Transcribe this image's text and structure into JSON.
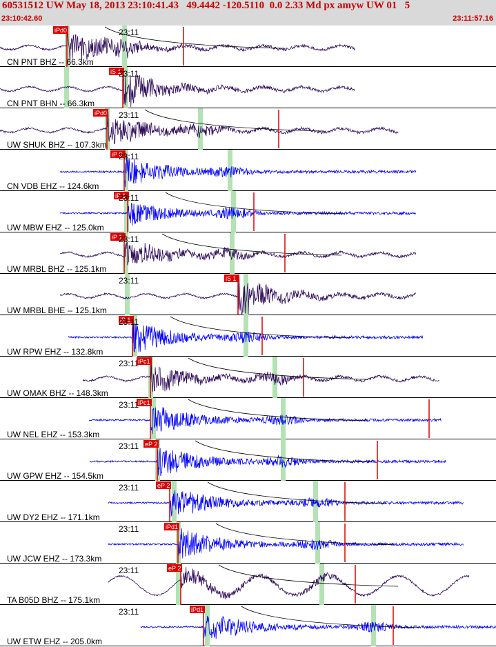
{
  "header": {
    "title": "60531512 UW May 18, 2013 23:10:41.43   49.4442 -120.5110  0.0 2.33 Md px amyw UW 01   5",
    "start_time": "23:10:42.60",
    "end_time": "23:11:57.16"
  },
  "chart_data": {
    "type": "line",
    "colors": {
      "broadband": "#2e0a5a",
      "short_period": "#0000ff",
      "pick": "#e00000",
      "label": "#000000",
      "phase_band": "#b4e2b4",
      "fit_curve": "#000000"
    },
    "minute_label": "23:11",
    "traces": [
      {
        "label": "CN PNT BHZ -- 66.3km",
        "pick": "iPd0",
        "kind": "bb",
        "amp": 0.95
      },
      {
        "label": "CN PNT BHN -- 66.3km",
        "pick": "iS 1",
        "kind": "bb",
        "amp": 0.9
      },
      {
        "label": "UW SHUK BHZ -- 107.3km",
        "pick": "iPd0",
        "kind": "bb",
        "amp": 0.95
      },
      {
        "label": "CN VDB EHZ -- 124.6km",
        "pick": "iP 0",
        "kind": "sp",
        "amp": 0.9
      },
      {
        "label": "UW MBW EHZ -- 125.0km",
        "pick": "iP 1",
        "kind": "sp",
        "amp": 0.7
      },
      {
        "label": "UW MRBL BHZ -- 125.1km",
        "pick": "iP 1",
        "kind": "bb",
        "amp": 0.8
      },
      {
        "label": "UW MRBL BHE -- 125.1km",
        "pick": "iS 1",
        "kind": "bb",
        "amp": 0.9
      },
      {
        "label": "UW RPW EHZ -- 132.8km",
        "pick": "iP 1",
        "kind": "sp",
        "amp": 0.9
      },
      {
        "label": "UW OMAK BHZ -- 148.3km",
        "pick": "iPc1",
        "kind": "bb",
        "amp": 0.8
      },
      {
        "label": "UW NEL EHZ -- 153.3km",
        "pick": "iPc1",
        "kind": "sp",
        "amp": 0.9
      },
      {
        "label": "UW GPW EHZ -- 154.5km",
        "pick": "eP 2",
        "kind": "sp",
        "amp": 0.9
      },
      {
        "label": "UW DY2 EHZ -- 171.1km",
        "pick": "eP 2",
        "kind": "sp",
        "amp": 0.95
      },
      {
        "label": "UW JCW EHZ -- 173.3km",
        "pick": "iPd1",
        "kind": "sp",
        "amp": 0.9
      },
      {
        "label": "TA B05D BHZ -- 175.1km",
        "pick": "eP 2",
        "kind": "bb",
        "amp": 0.8
      },
      {
        "label": "UW ETW EHZ -- 205.0km",
        "pick": "iPd1",
        "kind": "sp",
        "amp": 0.9
      }
    ]
  }
}
